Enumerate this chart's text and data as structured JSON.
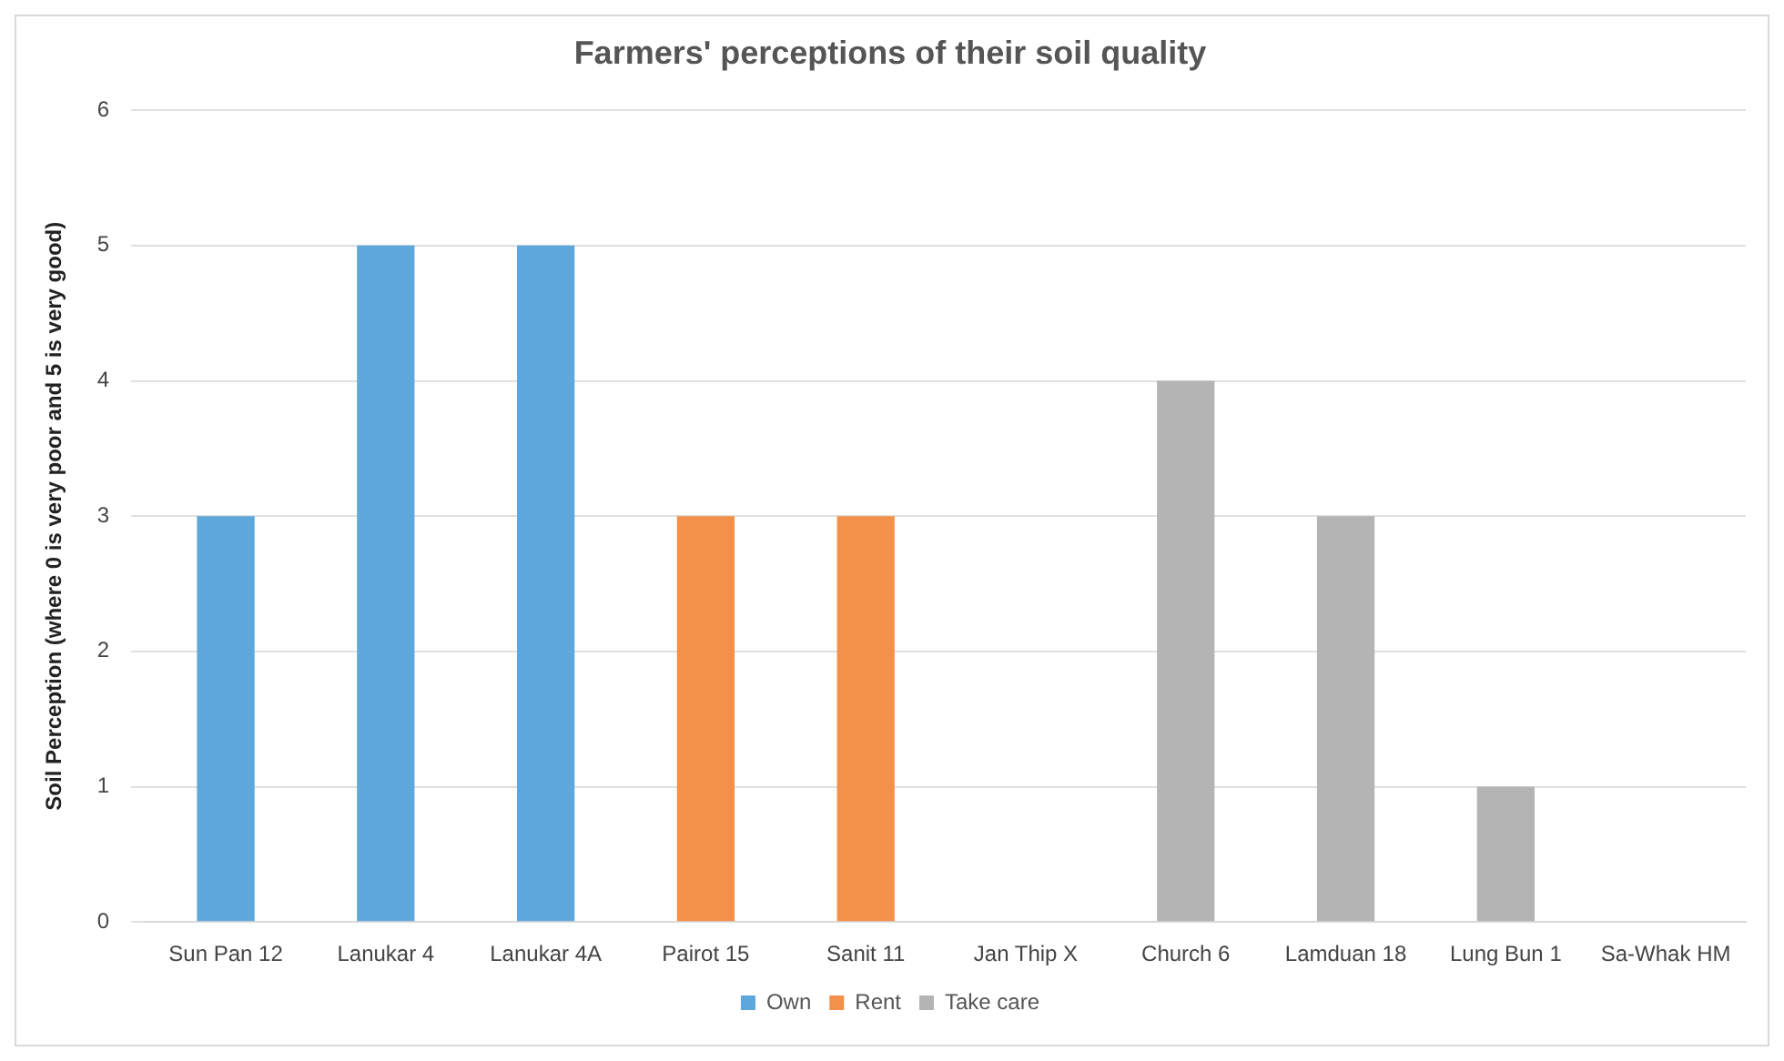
{
  "chart_data": {
    "type": "bar",
    "title": "Farmers' perceptions of their soil quality",
    "ylabel": "Soil Perception (where 0 is very poor and 5 is very good)",
    "categories": [
      "Sun Pan 12",
      "Lanukar 4",
      "Lanukar 4A",
      "Pairot 15",
      "Sanit 11",
      "Jan Thip X",
      "Church 6",
      "Lamduan 18",
      "Lung Bun 1",
      "Sa-Whak HM"
    ],
    "series": [
      {
        "name": "Own",
        "color": "#5ea7db",
        "values": [
          3,
          5,
          5,
          null,
          null,
          null,
          null,
          null,
          null,
          null
        ]
      },
      {
        "name": "Rent",
        "color": "#f39049",
        "values": [
          null,
          null,
          null,
          3,
          3,
          null,
          null,
          null,
          null,
          null
        ]
      },
      {
        "name": "Take care",
        "color": "#b4b4b4",
        "values": [
          null,
          null,
          null,
          null,
          null,
          null,
          4,
          3,
          1,
          null
        ]
      }
    ],
    "ylim": [
      0,
      6
    ],
    "yticks": [
      0,
      1,
      2,
      3,
      4,
      5,
      6
    ],
    "grid": "y",
    "legend": "bottom"
  }
}
